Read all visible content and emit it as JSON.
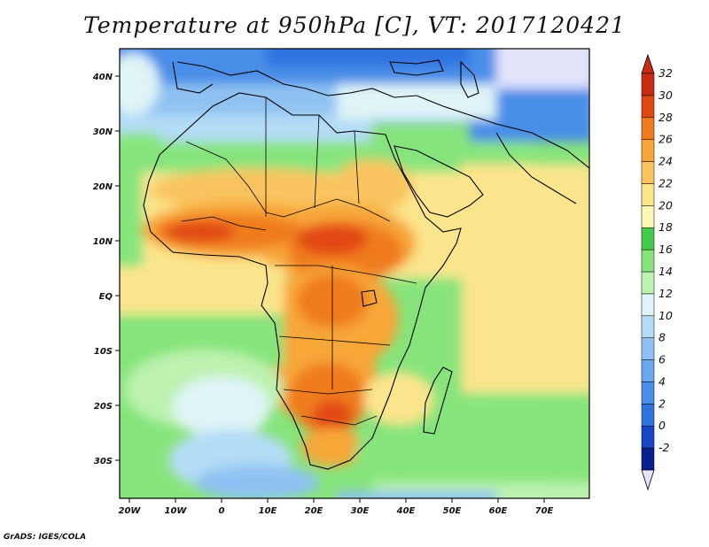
{
  "title": "Temperature at 950hPa [C], VT: 2017120421",
  "footer": "GrADS: IGES/COLA",
  "map": {
    "lon_range": [
      -22,
      80
    ],
    "lat_range": [
      -37,
      45
    ],
    "lon_ticks": [
      "20W",
      "10W",
      "0",
      "10E",
      "20E",
      "30E",
      "40E",
      "50E",
      "60E",
      "70E"
    ],
    "lat_ticks": [
      "40N",
      "30N",
      "20N",
      "10N",
      "EQ",
      "10S",
      "20S",
      "30S"
    ]
  },
  "colorbar": {
    "labels": [
      "-2",
      "0",
      "2",
      "4",
      "6",
      "8",
      "10",
      "12",
      "14",
      "16",
      "18",
      "20",
      "22",
      "24",
      "26",
      "28",
      "30",
      "32"
    ],
    "colors": [
      "#0a1f8f",
      "#1546c6",
      "#2f72e0",
      "#4a8ee8",
      "#6aa8ee",
      "#8fc2f2",
      "#b4dcf6",
      "#dff4f7",
      "#bdf2b0",
      "#86e47b",
      "#45c94c",
      "#fbf7b4",
      "#fbe58c",
      "#f9c45e",
      "#f7a637",
      "#f07b1f",
      "#e24816",
      "#c92a12"
    ],
    "under_color": "#e3e4fb",
    "over_color": "#c92a12"
  }
}
